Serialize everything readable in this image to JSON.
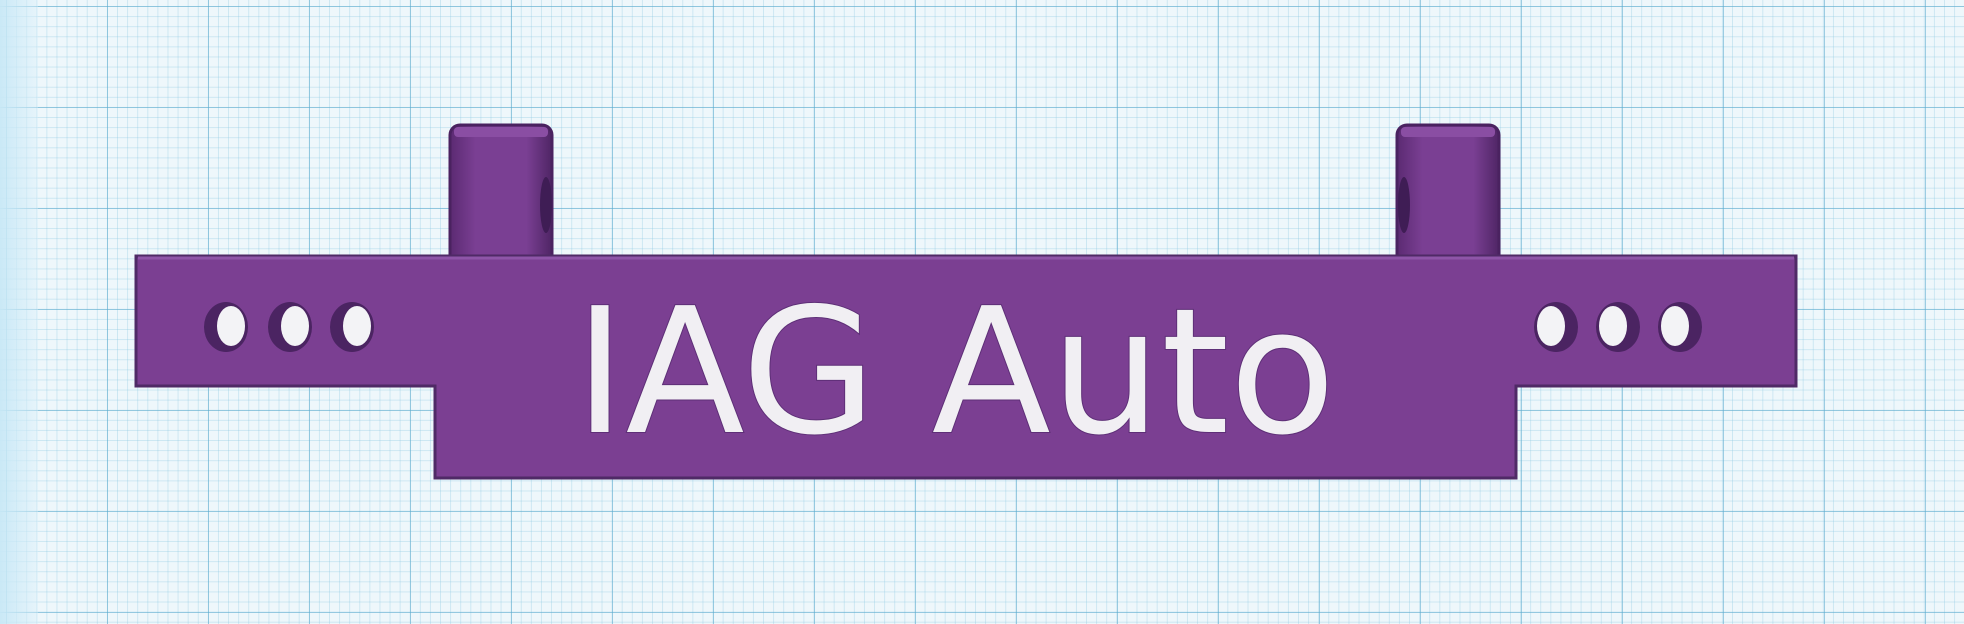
{
  "workplane": {
    "grid": true
  },
  "model": {
    "color": "#7b3f92",
    "text_color": "#f1eff3",
    "label": "IAG Auto",
    "left_holes": 3,
    "right_holes": 3
  }
}
